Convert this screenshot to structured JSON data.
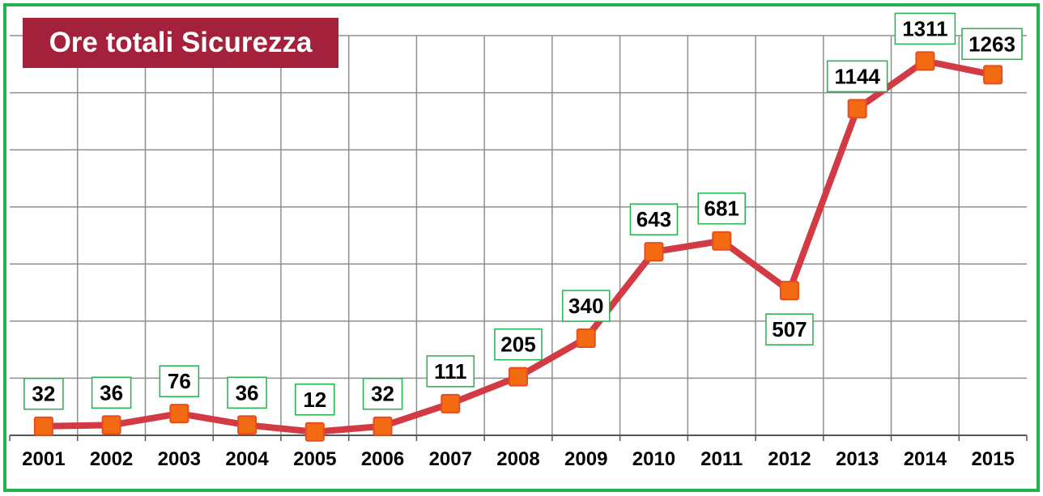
{
  "chart_data": {
    "type": "line",
    "title": "Ore totali Sicurezza",
    "categories": [
      "2001",
      "2002",
      "2003",
      "2004",
      "2005",
      "2006",
      "2007",
      "2008",
      "2009",
      "2010",
      "2011",
      "2012",
      "2013",
      "2014",
      "2015"
    ],
    "series": [
      {
        "values": [
          32,
          36,
          76,
          36,
          12,
          32,
          111,
          205,
          340,
          643,
          681,
          507,
          1144,
          1311,
          1263
        ]
      }
    ],
    "ylim": [
      0,
      1400
    ],
    "grid": true,
    "data_labels": true,
    "colors": {
      "line": "#d23a44",
      "marker": "#f26b12",
      "marker_edge": "#e84e1b",
      "label_border": "#22b14c",
      "title_bg": "#a3213a",
      "frame": "#22b14c",
      "grid": "#8f8f8f"
    }
  }
}
